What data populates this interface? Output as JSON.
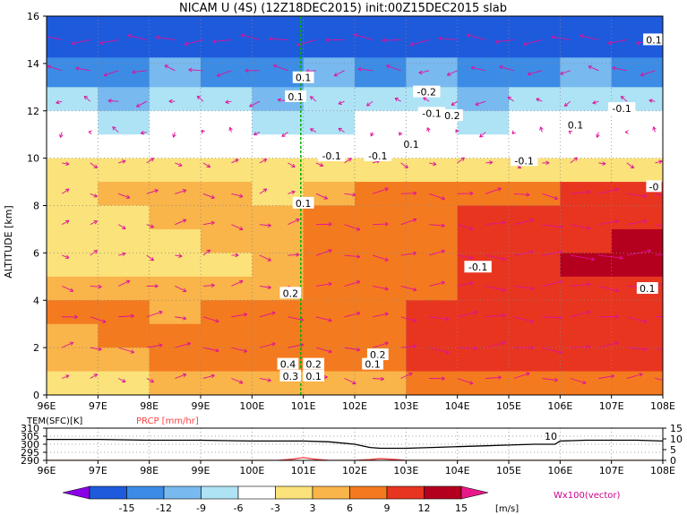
{
  "title": "NICAM U (4S) (12Z18DEC2015) init:00Z15DEC2015 slab",
  "chart_data": [
    {
      "type": "heatmap",
      "title": "NICAM U (4S) (12Z18DEC2015) init:00Z15DEC2015 slab",
      "xlabel": "",
      "ylabel": "ALTITUDE [km]",
      "x_ticks": [
        "96E",
        "97E",
        "98E",
        "99E",
        "100E",
        "101E",
        "102E",
        "103E",
        "104E",
        "105E",
        "106E",
        "107E",
        "108E"
      ],
      "xlim": [
        96,
        108
      ],
      "y_ticks": [
        "0",
        "2",
        "4",
        "6",
        "8",
        "10",
        "12",
        "14",
        "16"
      ],
      "ylim": [
        0,
        16
      ],
      "grid": true,
      "marker_line_lon": 100.95,
      "z_rows": [
        {
          "alt": 15.0,
          "u": [
            -15,
            -15,
            -15,
            -15,
            -15,
            -15,
            -15,
            -15,
            -15,
            -15,
            -15,
            -15
          ]
        },
        {
          "alt": 13.5,
          "u": [
            -12,
            -12,
            -9,
            -12,
            -12,
            -9,
            -12,
            -9,
            -12,
            -12,
            -9,
            -12
          ]
        },
        {
          "alt": 12.5,
          "u": [
            -6,
            -9,
            -6,
            -6,
            -9,
            -6,
            -6,
            -6,
            -9,
            -6,
            -6,
            -6
          ]
        },
        {
          "alt": 11.5,
          "u": [
            -3,
            -6,
            -3,
            -3,
            -6,
            -6,
            -3,
            -3,
            -6,
            -3,
            -3,
            -3
          ]
        },
        {
          "alt": 10.5,
          "u": [
            0,
            -3,
            0,
            -3,
            0,
            -3,
            0,
            0,
            -3,
            0,
            0,
            0
          ]
        },
        {
          "alt": 9.5,
          "u": [
            3,
            3,
            3,
            3,
            3,
            3,
            3,
            3,
            3,
            3,
            3,
            3
          ]
        },
        {
          "alt": 8.5,
          "u": [
            3,
            6,
            6,
            6,
            3,
            6,
            9,
            9,
            9,
            9,
            12,
            12
          ]
        },
        {
          "alt": 7.5,
          "u": [
            3,
            3,
            6,
            6,
            6,
            9,
            9,
            9,
            12,
            12,
            12,
            12
          ]
        },
        {
          "alt": 6.5,
          "u": [
            3,
            3,
            3,
            6,
            6,
            9,
            9,
            9,
            12,
            12,
            12,
            15
          ]
        },
        {
          "alt": 5.5,
          "u": [
            3,
            3,
            3,
            3,
            6,
            9,
            9,
            9,
            12,
            12,
            15,
            15
          ]
        },
        {
          "alt": 4.5,
          "u": [
            6,
            6,
            6,
            6,
            6,
            9,
            9,
            9,
            12,
            12,
            12,
            12
          ]
        },
        {
          "alt": 3.5,
          "u": [
            9,
            9,
            6,
            9,
            9,
            9,
            9,
            12,
            12,
            12,
            12,
            12
          ]
        },
        {
          "alt": 2.5,
          "u": [
            6,
            9,
            9,
            9,
            9,
            9,
            9,
            12,
            12,
            12,
            12,
            12
          ]
        },
        {
          "alt": 1.5,
          "u": [
            6,
            6,
            9,
            9,
            9,
            9,
            9,
            12,
            12,
            12,
            12,
            12
          ]
        },
        {
          "alt": 0.5,
          "u": [
            3,
            3,
            6,
            6,
            6,
            6,
            6,
            9,
            9,
            9,
            9,
            9
          ]
        }
      ],
      "contour_labels": [
        {
          "lon": 101.0,
          "alt": 13.4,
          "text": "0.1"
        },
        {
          "lon": 100.85,
          "alt": 12.6,
          "text": "0.1"
        },
        {
          "lon": 103.4,
          "alt": 12.8,
          "text": "-0.2"
        },
        {
          "lon": 103.5,
          "alt": 11.9,
          "text": "-0.1"
        },
        {
          "lon": 103.9,
          "alt": 11.8,
          "text": "0.2"
        },
        {
          "lon": 107.2,
          "alt": 12.1,
          "text": "-0.1"
        },
        {
          "lon": 106.3,
          "alt": 11.4,
          "text": "0.1"
        },
        {
          "lon": 103.1,
          "alt": 10.6,
          "text": "0.1"
        },
        {
          "lon": 102.45,
          "alt": 10.1,
          "text": "-0.1"
        },
        {
          "lon": 101.55,
          "alt": 10.1,
          "text": "-0.1"
        },
        {
          "lon": 105.3,
          "alt": 9.9,
          "text": "-0.1"
        },
        {
          "lon": 107.9,
          "alt": 15.0,
          "text": "0.1"
        },
        {
          "lon": 108.0,
          "alt": 8.8,
          "text": "-0"
        },
        {
          "lon": 101.0,
          "alt": 8.1,
          "text": "0.1"
        },
        {
          "lon": 104.4,
          "alt": 5.4,
          "text": "-0.1"
        },
        {
          "lon": 107.7,
          "alt": 4.5,
          "text": "0.1"
        },
        {
          "lon": 100.75,
          "alt": 4.3,
          "text": "0.2"
        },
        {
          "lon": 102.45,
          "alt": 1.7,
          "text": "0.2"
        },
        {
          "lon": 102.35,
          "alt": 1.3,
          "text": "0.1"
        },
        {
          "lon": 100.7,
          "alt": 1.3,
          "text": "0.4"
        },
        {
          "lon": 100.75,
          "alt": 0.8,
          "text": "0.3"
        },
        {
          "lon": 101.2,
          "alt": 1.3,
          "text": "0.2"
        },
        {
          "lon": 101.2,
          "alt": 0.8,
          "text": "0.1"
        }
      ]
    },
    {
      "type": "line",
      "title": "",
      "series": [
        {
          "name": "TEM(SFC)[K]",
          "color": "#000000",
          "x": [
            96,
            97,
            98,
            99,
            100,
            100.5,
            101,
            101.5,
            102,
            102.3,
            102.5,
            103,
            103.5,
            104,
            104.5,
            105,
            105.5,
            105.9,
            106,
            106.5,
            107,
            107.5,
            108
          ],
          "y": [
            303,
            303,
            302.5,
            302.5,
            302,
            302,
            302,
            301.5,
            300,
            298,
            297.5,
            297.5,
            298,
            298.5,
            299,
            299.5,
            300,
            300,
            302,
            302.5,
            302.5,
            302.5,
            302
          ]
        },
        {
          "name": "PRCP [mm/hr]",
          "color": "#ff4040",
          "x": [
            96,
            100.5,
            100.8,
            101.0,
            101.2,
            101.5,
            102.0,
            102.3,
            102.5,
            102.8,
            103.0,
            103.5,
            108
          ],
          "y": [
            0,
            0,
            0.6,
            1.3,
            0.6,
            0,
            0,
            0.4,
            0.8,
            0.4,
            0,
            0,
            0
          ]
        }
      ],
      "x_ticks": [
        "96E",
        "97E",
        "98E",
        "99E",
        "100E",
        "101E",
        "102E",
        "103E",
        "104E",
        "105E",
        "106E",
        "107E",
        "108E"
      ],
      "xlim": [
        96,
        108
      ],
      "y_left_ticks": [
        "290",
        "295",
        "300",
        "305",
        "310"
      ],
      "y_left_lim": [
        290,
        310
      ],
      "y_right_ticks": [
        "0",
        "5",
        "10",
        "15"
      ],
      "y_right_lim": [
        0,
        15
      ],
      "reference_value": "10",
      "grid": true
    }
  ],
  "colorbar": {
    "ticks": [
      "-15",
      "-12",
      "-9",
      "-6",
      "-3",
      "3",
      "6",
      "9",
      "12",
      "15"
    ],
    "colors": [
      "#8a00e6",
      "#1e5adc",
      "#3c8ce6",
      "#78b9ef",
      "#aee3f5",
      "#ffffff",
      "#fbe27a",
      "#f9b44a",
      "#f47a1f",
      "#e83520",
      "#b4001e",
      "#e8188a"
    ],
    "unit": "[m/s]",
    "vector_label": "Wx100(vector)"
  }
}
